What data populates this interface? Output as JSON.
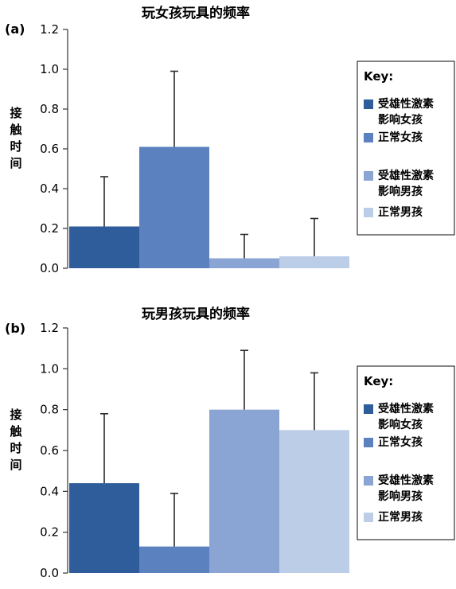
{
  "chart_data": [
    {
      "type": "bar",
      "panel_label": "(a)",
      "title": "玩女孩玩具的频率",
      "ylabel": "接触时间",
      "xlabel": "",
      "ylim": [
        0,
        1.2
      ],
      "yticks": [
        "0.0",
        "0.2",
        "0.4",
        "0.6",
        "0.8",
        "1.0",
        "1.2"
      ],
      "grid": false,
      "legend_position": "right",
      "legend_title": "Key:",
      "series": [
        {
          "name": "受雄性激素影响女孩",
          "legend_lines": [
            "受雄性激素",
            "影响女孩"
          ],
          "value": 0.21,
          "error_upper": 0.46,
          "color": "#2f5d9c"
        },
        {
          "name": "正常女孩",
          "legend_lines": [
            "正常女孩"
          ],
          "value": 0.61,
          "error_upper": 0.99,
          "color": "#5b81bf"
        },
        {
          "name": "受雄性激素影响男孩",
          "legend_lines": [
            "受雄性激素",
            "影响男孩"
          ],
          "value": 0.05,
          "error_upper": 0.17,
          "color": "#8aa4d3"
        },
        {
          "name": "正常男孩",
          "legend_lines": [
            "正常男孩"
          ],
          "value": 0.06,
          "error_upper": 0.25,
          "color": "#bccde8"
        }
      ]
    },
    {
      "type": "bar",
      "panel_label": "(b)",
      "title": "玩男孩玩具的频率",
      "ylabel": "接触时间",
      "xlabel": "",
      "ylim": [
        0,
        1.2
      ],
      "yticks": [
        "0.0",
        "0.2",
        "0.4",
        "0.6",
        "0.8",
        "1.0",
        "1.2"
      ],
      "grid": false,
      "legend_position": "right",
      "legend_title": "Key:",
      "series": [
        {
          "name": "受雄性激素影响女孩",
          "legend_lines": [
            "受雄性激素",
            "影响女孩"
          ],
          "value": 0.44,
          "error_upper": 0.78,
          "color": "#2f5d9c"
        },
        {
          "name": "正常女孩",
          "legend_lines": [
            "正常女孩"
          ],
          "value": 0.13,
          "error_upper": 0.39,
          "color": "#5b81bf"
        },
        {
          "name": "受雄性激素影响男孩",
          "legend_lines": [
            "受雄性激素",
            "影响男孩"
          ],
          "value": 0.8,
          "error_upper": 1.09,
          "color": "#8aa4d3"
        },
        {
          "name": "正常男孩",
          "legend_lines": [
            "正常男孩"
          ],
          "value": 0.7,
          "error_upper": 0.98,
          "color": "#bccde8"
        }
      ]
    }
  ]
}
